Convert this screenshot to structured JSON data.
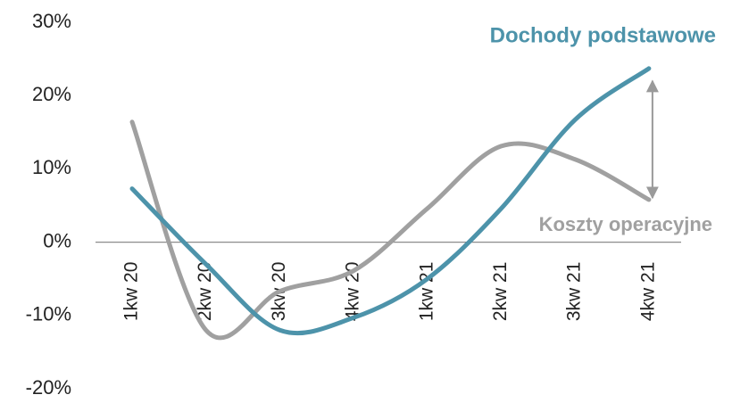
{
  "chart_data": {
    "type": "line",
    "categories": [
      "1kw 20",
      "2kw 20",
      "3kw 20",
      "4kw 20",
      "1kw 21",
      "2kw 21",
      "3kw 21",
      "4kw 21"
    ],
    "series": [
      {
        "name": "Dochody podstawowe",
        "color": "#4d93aa",
        "values": [
          7.3,
          -3,
          -12,
          -10.3,
          -5,
          4.6,
          16.7,
          23.7
        ]
      },
      {
        "name": "Koszty operacyjne",
        "color": "#a0a0a0",
        "values": [
          16.4,
          -12,
          -6.7,
          -3.9,
          4.6,
          13.1,
          11.3,
          5.8
        ]
      }
    ],
    "ylim": [
      -20,
      30
    ],
    "yticks": [
      {
        "value": -20,
        "label": "-20%"
      },
      {
        "value": -10,
        "label": "-10%"
      },
      {
        "value": 0,
        "label": "0%"
      },
      {
        "value": 10,
        "label": "10%"
      },
      {
        "value": 20,
        "label": "20%"
      },
      {
        "value": 30,
        "label": "30%"
      }
    ]
  }
}
